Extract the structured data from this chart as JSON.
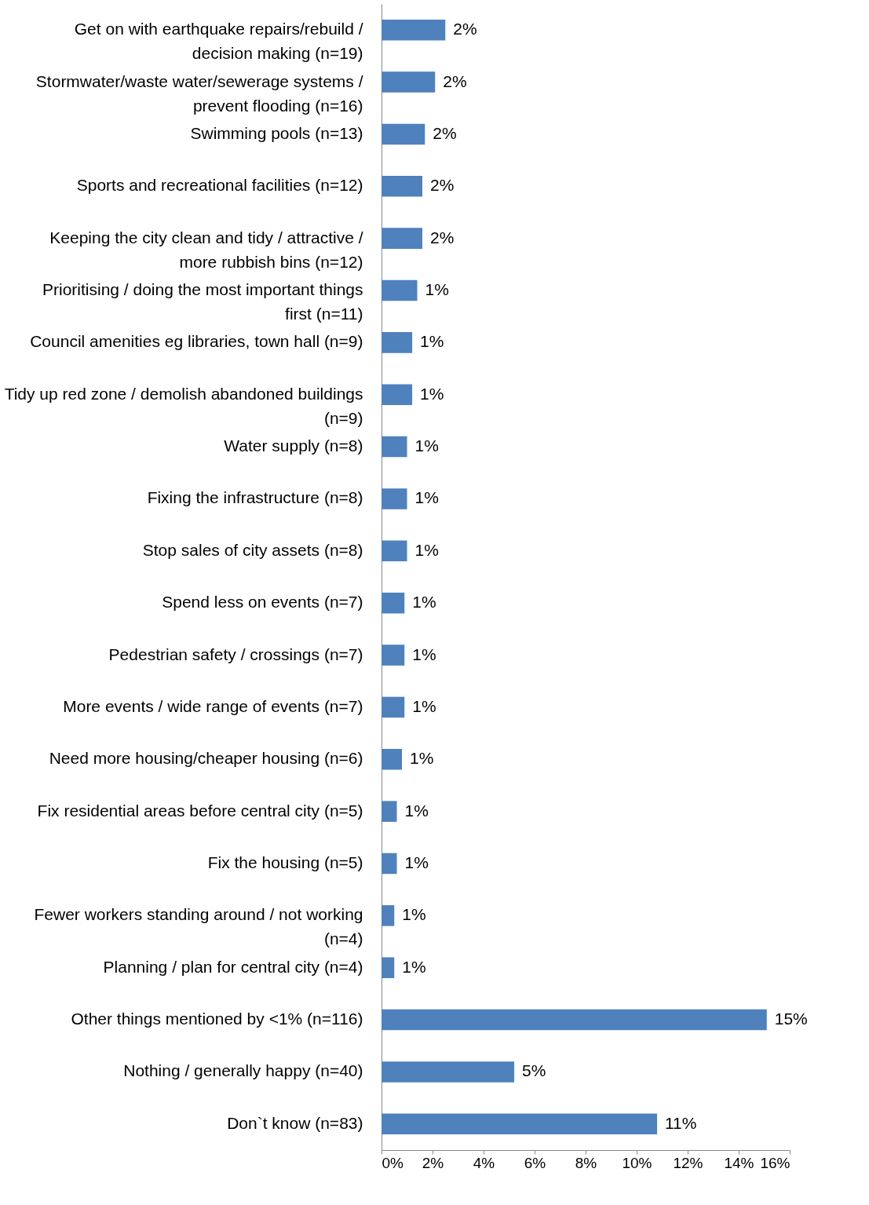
{
  "chart_data": {
    "type": "bar",
    "orientation": "horizontal",
    "categories": [
      "Get on with earthquake repairs/rebuild / decision making (n=19)",
      "Stormwater/waste water/sewerage systems / prevent flooding (n=16)",
      "Swimming pools (n=13)",
      "Sports and recreational facilities (n=12)",
      "Keeping the city clean and tidy / attractive / more rubbish bins (n=12)",
      "Prioritising / doing the most important things first (n=11)",
      "Council amenities eg libraries, town hall (n=9)",
      "Tidy up red zone / demolish abandoned buildings (n=9)",
      "Water supply (n=8)",
      "Fixing the infrastructure (n=8)",
      "Stop sales of city assets (n=8)",
      "Spend less on events (n=7)",
      "Pedestrian safety / crossings (n=7)",
      "More events / wide range of events (n=7)",
      "Need more housing/cheaper housing (n=6)",
      "Fix residential areas before central city (n=5)",
      "Fix the housing (n=5)",
      "Fewer workers standing around / not working (n=4)",
      "Planning / plan for central city (n=4)",
      "Other things mentioned by <1% (n=116)",
      "Nothing / generally happy (n=40)",
      "Don`t know (n=83)"
    ],
    "values": [
      2.5,
      2.1,
      1.7,
      1.6,
      1.6,
      1.4,
      1.2,
      1.2,
      1.0,
      1.0,
      1.0,
      0.9,
      0.9,
      0.9,
      0.8,
      0.6,
      0.6,
      0.5,
      0.5,
      15.1,
      5.2,
      10.8
    ],
    "value_labels": [
      "2%",
      "2%",
      "2%",
      "2%",
      "2%",
      "1%",
      "1%",
      "1%",
      "1%",
      "1%",
      "1%",
      "1%",
      "1%",
      "1%",
      "1%",
      "1%",
      "1%",
      "1%",
      "1%",
      "15%",
      "5%",
      "11%"
    ],
    "color": "#4f81bd",
    "xlim": [
      0,
      16
    ],
    "xticks": [
      {
        "value": 0,
        "label": "0%"
      },
      {
        "value": 2,
        "label": "2%"
      },
      {
        "value": 4,
        "label": "4%"
      },
      {
        "value": 6,
        "label": "6%"
      },
      {
        "value": 8,
        "label": "8%"
      },
      {
        "value": 10,
        "label": "10%"
      },
      {
        "value": 12,
        "label": "12%"
      },
      {
        "value": 14,
        "label": "14%"
      },
      {
        "value": 16,
        "label": "16%"
      }
    ],
    "grid": false
  }
}
